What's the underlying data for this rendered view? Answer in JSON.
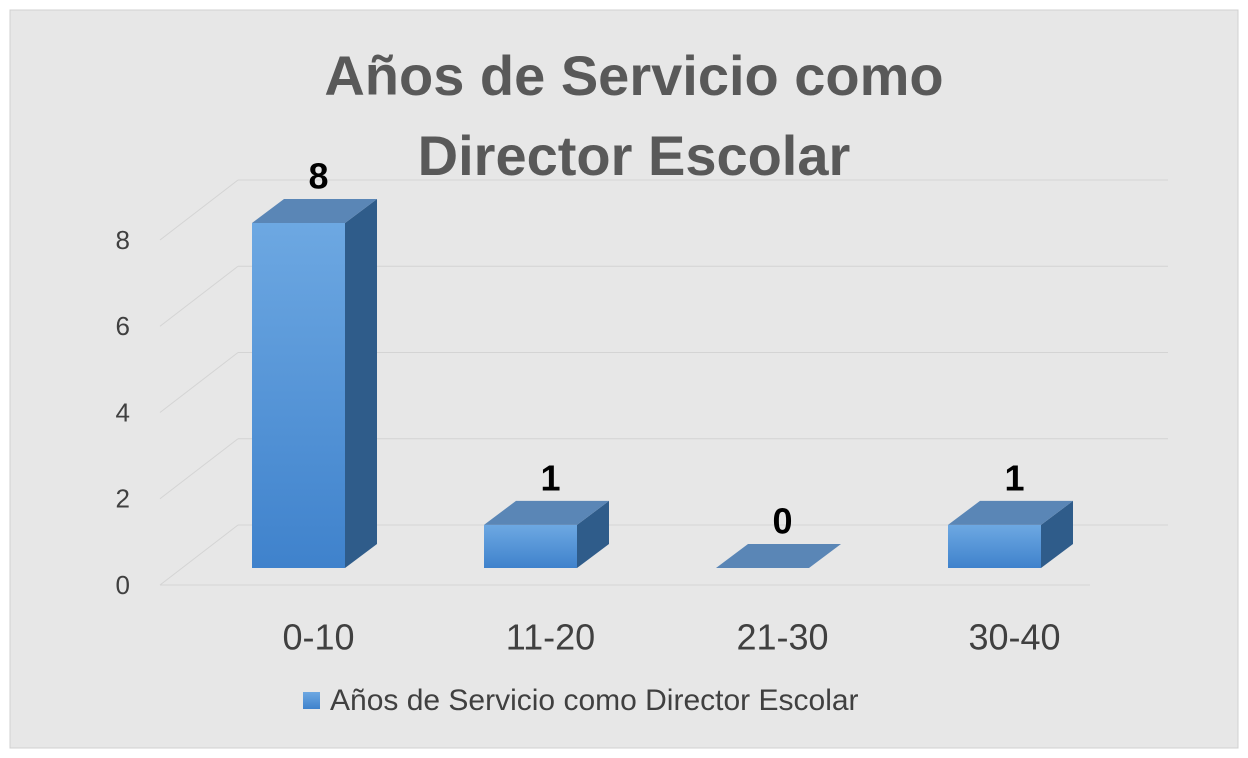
{
  "chart_data": {
    "type": "bar3d",
    "title": "Años de Servicio como Director Escolar",
    "categories": [
      "0-10",
      "11-20",
      "21-30",
      "30-40"
    ],
    "series": [
      {
        "name": "Años de Servicio como Director Escolar",
        "color": "#4a8fd6",
        "values": [
          8,
          1,
          0,
          1
        ]
      }
    ],
    "ylim": [
      0,
      8
    ],
    "yticks": [
      0,
      2,
      4,
      6,
      8
    ],
    "grid": true,
    "legend": "bottom"
  }
}
